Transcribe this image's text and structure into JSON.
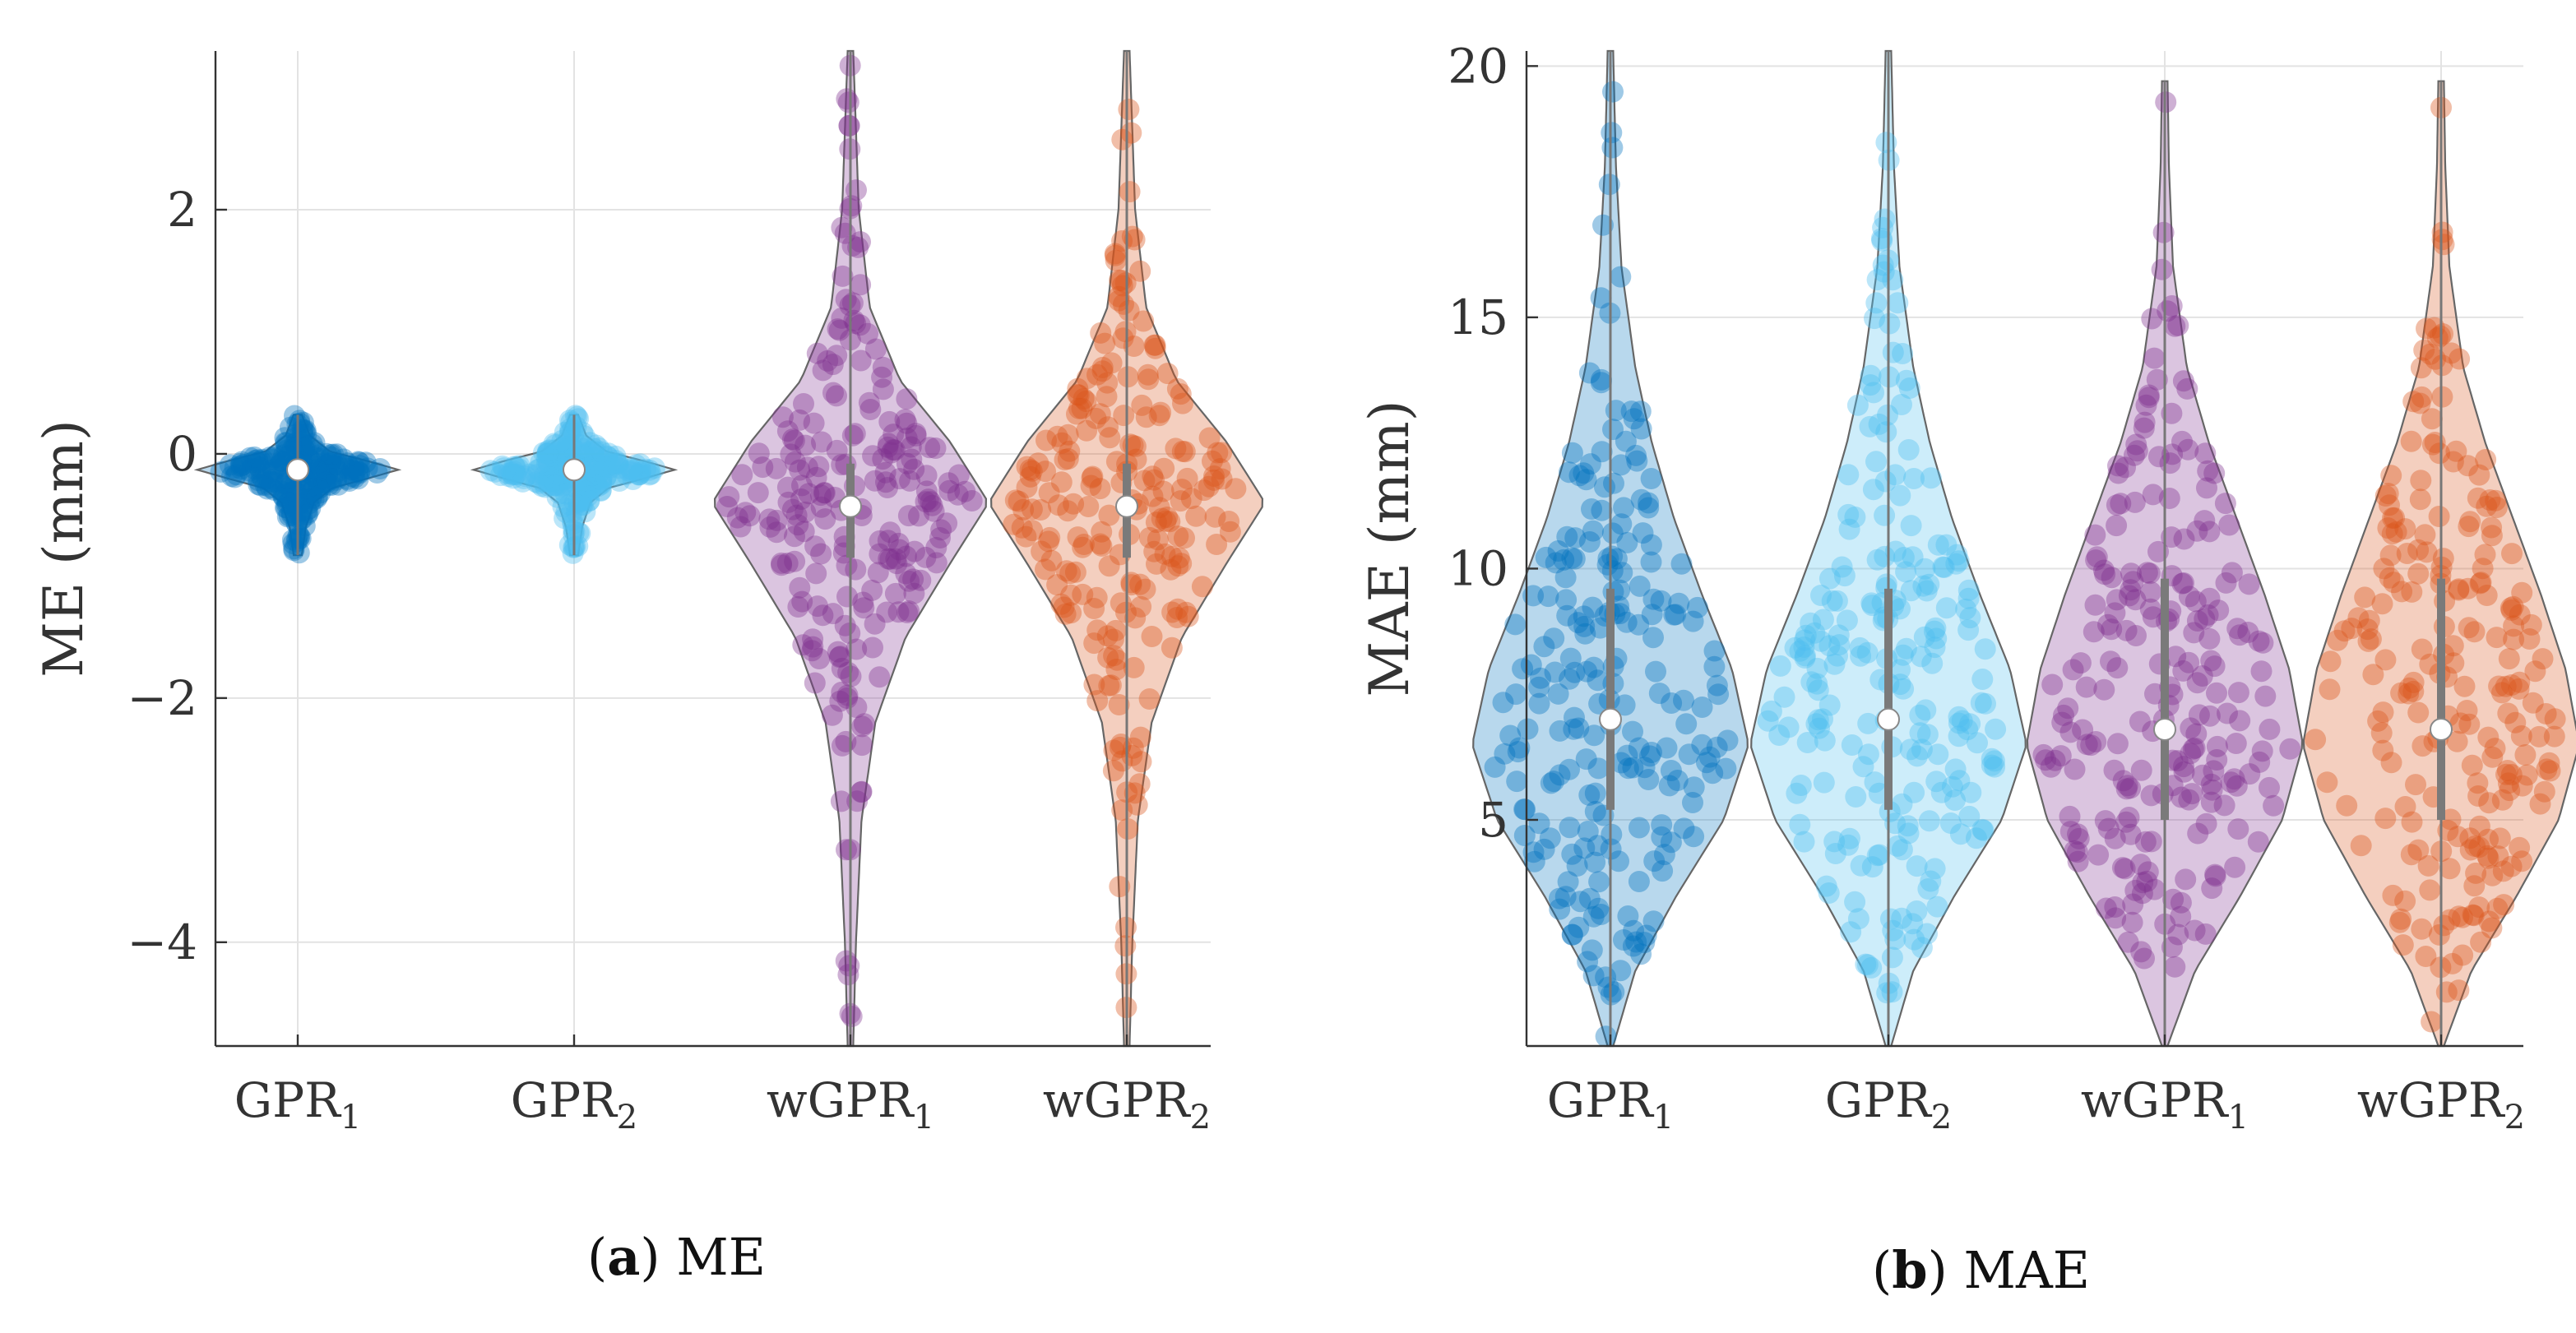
{
  "chart_data": [
    {
      "type": "violin",
      "panel": "a",
      "caption_letter": "a",
      "caption_text": "ME",
      "title": "",
      "xlabel": "",
      "ylabel": "ME (mm)",
      "ylim": [
        -4.85,
        3.3
      ],
      "yticks": [
        2,
        0,
        -2,
        -4
      ],
      "ytick_labels": [
        "2",
        "0",
        "−2",
        "−4"
      ],
      "grid": true,
      "categories": [
        {
          "base": "GPR",
          "sub": "1"
        },
        {
          "base": "GPR",
          "sub": "2"
        },
        {
          "base": "wGPR",
          "sub": "1"
        },
        {
          "base": "wGPR",
          "sub": "2"
        }
      ],
      "series": [
        {
          "name": "GPR1",
          "color": "#0072BD",
          "median": -0.13,
          "q1": -0.2,
          "q3": -0.05,
          "min": -0.83,
          "max": 0.32,
          "width_scale": 0.35,
          "density": [
            [
              -0.83,
              0.04
            ],
            [
              -0.6,
              0.08
            ],
            [
              -0.4,
              0.16
            ],
            [
              -0.28,
              0.34
            ],
            [
              -0.2,
              0.7
            ],
            [
              -0.13,
              1.0
            ],
            [
              -0.06,
              0.7
            ],
            [
              0.02,
              0.32
            ],
            [
              0.15,
              0.12
            ],
            [
              0.32,
              0.04
            ]
          ]
        },
        {
          "name": "GPR2",
          "color": "#4DBEEE",
          "median": -0.13,
          "q1": -0.2,
          "q3": -0.05,
          "min": -0.83,
          "max": 0.32,
          "width_scale": 0.35,
          "density": [
            [
              -0.83,
              0.04
            ],
            [
              -0.6,
              0.08
            ],
            [
              -0.4,
              0.16
            ],
            [
              -0.28,
              0.34
            ],
            [
              -0.2,
              0.7
            ],
            [
              -0.13,
              1.0
            ],
            [
              -0.06,
              0.7
            ],
            [
              0.02,
              0.32
            ],
            [
              0.15,
              0.12
            ],
            [
              0.32,
              0.04
            ]
          ]
        },
        {
          "name": "wGPR1",
          "color": "#7E2F8E",
          "median": -0.43,
          "q1": -0.85,
          "q3": -0.08,
          "min": -4.85,
          "max": 3.3,
          "width_scale": 0.48,
          "density": [
            [
              -4.85,
              0.02
            ],
            [
              -4.0,
              0.04
            ],
            [
              -3.0,
              0.08
            ],
            [
              -2.2,
              0.18
            ],
            [
              -1.5,
              0.4
            ],
            [
              -0.9,
              0.72
            ],
            [
              -0.4,
              1.0
            ],
            [
              0.1,
              0.72
            ],
            [
              0.6,
              0.36
            ],
            [
              1.2,
              0.14
            ],
            [
              2.0,
              0.06
            ],
            [
              3.3,
              0.02
            ]
          ]
        },
        {
          "name": "wGPR2",
          "color": "#D95319",
          "median": -0.43,
          "q1": -0.85,
          "q3": -0.08,
          "min": -4.85,
          "max": 3.3,
          "width_scale": 0.48,
          "density": [
            [
              -4.85,
              0.02
            ],
            [
              -4.0,
              0.04
            ],
            [
              -3.0,
              0.08
            ],
            [
              -2.2,
              0.18
            ],
            [
              -1.5,
              0.4
            ],
            [
              -0.9,
              0.72
            ],
            [
              -0.4,
              1.0
            ],
            [
              0.1,
              0.72
            ],
            [
              0.6,
              0.36
            ],
            [
              1.2,
              0.14
            ],
            [
              2.0,
              0.06
            ],
            [
              3.3,
              0.02
            ]
          ]
        }
      ]
    },
    {
      "type": "violin",
      "panel": "b",
      "caption_letter": "b",
      "caption_text": "MAE",
      "title": "",
      "xlabel": "",
      "ylabel": "MAE (mm)",
      "ylim": [
        0.5,
        20.3
      ],
      "yticks": [
        20,
        15,
        10,
        5
      ],
      "ytick_labels": [
        "20",
        "15",
        "10",
        "5"
      ],
      "grid": true,
      "categories": [
        {
          "base": "GPR",
          "sub": "1"
        },
        {
          "base": "GPR",
          "sub": "2"
        },
        {
          "base": "wGPR",
          "sub": "1"
        },
        {
          "base": "wGPR",
          "sub": "2"
        }
      ],
      "series": [
        {
          "name": "GPR1",
          "color": "#0072BD",
          "median": 7.0,
          "q1": 5.2,
          "q3": 9.6,
          "min": 0.5,
          "max": 20.3,
          "width_scale": 0.48,
          "density": [
            [
              0.5,
              0.02
            ],
            [
              2.0,
              0.18
            ],
            [
              3.5,
              0.48
            ],
            [
              5.0,
              0.82
            ],
            [
              6.5,
              1.0
            ],
            [
              8.0,
              0.88
            ],
            [
              9.5,
              0.66
            ],
            [
              11.0,
              0.46
            ],
            [
              12.5,
              0.3
            ],
            [
              14.0,
              0.18
            ],
            [
              16.0,
              0.08
            ],
            [
              18.0,
              0.04
            ],
            [
              20.3,
              0.02
            ]
          ]
        },
        {
          "name": "GPR2",
          "color": "#4DBEEE",
          "median": 7.0,
          "q1": 5.2,
          "q3": 9.6,
          "min": 0.5,
          "max": 20.3,
          "width_scale": 0.48,
          "density": [
            [
              0.5,
              0.02
            ],
            [
              2.0,
              0.18
            ],
            [
              3.5,
              0.48
            ],
            [
              5.0,
              0.82
            ],
            [
              6.5,
              1.0
            ],
            [
              8.0,
              0.88
            ],
            [
              9.5,
              0.66
            ],
            [
              11.0,
              0.46
            ],
            [
              12.5,
              0.3
            ],
            [
              14.0,
              0.18
            ],
            [
              16.0,
              0.08
            ],
            [
              18.0,
              0.04
            ],
            [
              20.3,
              0.02
            ]
          ]
        },
        {
          "name": "wGPR1",
          "color": "#7E2F8E",
          "median": 6.8,
          "q1": 5.0,
          "q3": 9.8,
          "min": 0.5,
          "max": 19.7,
          "width_scale": 0.48,
          "density": [
            [
              0.5,
              0.02
            ],
            [
              2.0,
              0.22
            ],
            [
              3.5,
              0.55
            ],
            [
              5.0,
              0.85
            ],
            [
              6.5,
              1.0
            ],
            [
              8.0,
              0.9
            ],
            [
              9.5,
              0.72
            ],
            [
              11.0,
              0.52
            ],
            [
              12.5,
              0.32
            ],
            [
              14.0,
              0.16
            ],
            [
              16.0,
              0.06
            ],
            [
              18.0,
              0.03
            ],
            [
              19.7,
              0.02
            ]
          ]
        },
        {
          "name": "wGPR2",
          "color": "#D95319",
          "median": 6.8,
          "q1": 5.0,
          "q3": 9.8,
          "min": 0.5,
          "max": 19.7,
          "width_scale": 0.48,
          "density": [
            [
              0.5,
              0.02
            ],
            [
              2.0,
              0.22
            ],
            [
              3.5,
              0.55
            ],
            [
              5.0,
              0.85
            ],
            [
              6.5,
              1.0
            ],
            [
              8.0,
              0.9
            ],
            [
              9.5,
              0.72
            ],
            [
              11.0,
              0.52
            ],
            [
              12.5,
              0.32
            ],
            [
              14.0,
              0.16
            ],
            [
              16.0,
              0.06
            ],
            [
              18.0,
              0.03
            ],
            [
              19.7,
              0.02
            ]
          ]
        }
      ]
    }
  ]
}
